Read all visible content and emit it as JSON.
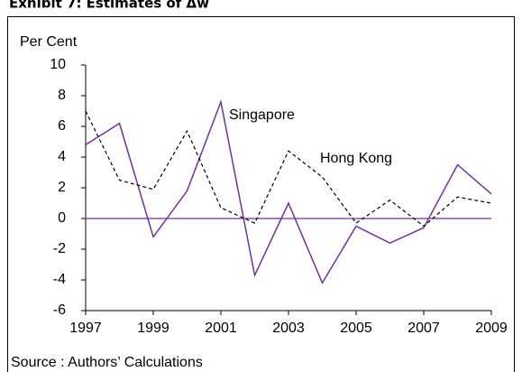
{
  "chart_data": {
    "type": "line",
    "title": "Exhibit 7: Estimates of Δw",
    "y_label": "Per Cent",
    "source": "Source :  Authors’ Calculations",
    "x": [
      1997,
      1998,
      1999,
      2000,
      2001,
      2002,
      2003,
      2004,
      2005,
      2006,
      2007,
      2008,
      2009
    ],
    "series": [
      {
        "name": "Singapore",
        "color": "#7030a0",
        "dashed": false,
        "values": [
          4.8,
          6.2,
          -1.2,
          1.8,
          7.6,
          -3.7,
          1.0,
          -4.2,
          -0.5,
          -1.6,
          -0.6,
          3.5,
          1.6
        ]
      },
      {
        "name": "Hong Kong",
        "color": "#000000",
        "dashed": true,
        "values": [
          7.0,
          2.5,
          1.9,
          5.7,
          0.7,
          -0.3,
          4.4,
          2.7,
          -0.3,
          1.2,
          -0.5,
          1.4,
          1.0
        ]
      }
    ],
    "xlim": [
      1997,
      2009
    ],
    "xticks": [
      1997,
      1999,
      2001,
      2003,
      2005,
      2007,
      2009
    ],
    "ylim": [
      -6,
      10
    ],
    "yticks": [
      -6,
      -4,
      -2,
      0,
      2,
      4,
      6,
      8,
      10
    ],
    "zero_line_color": "#7030a0"
  }
}
